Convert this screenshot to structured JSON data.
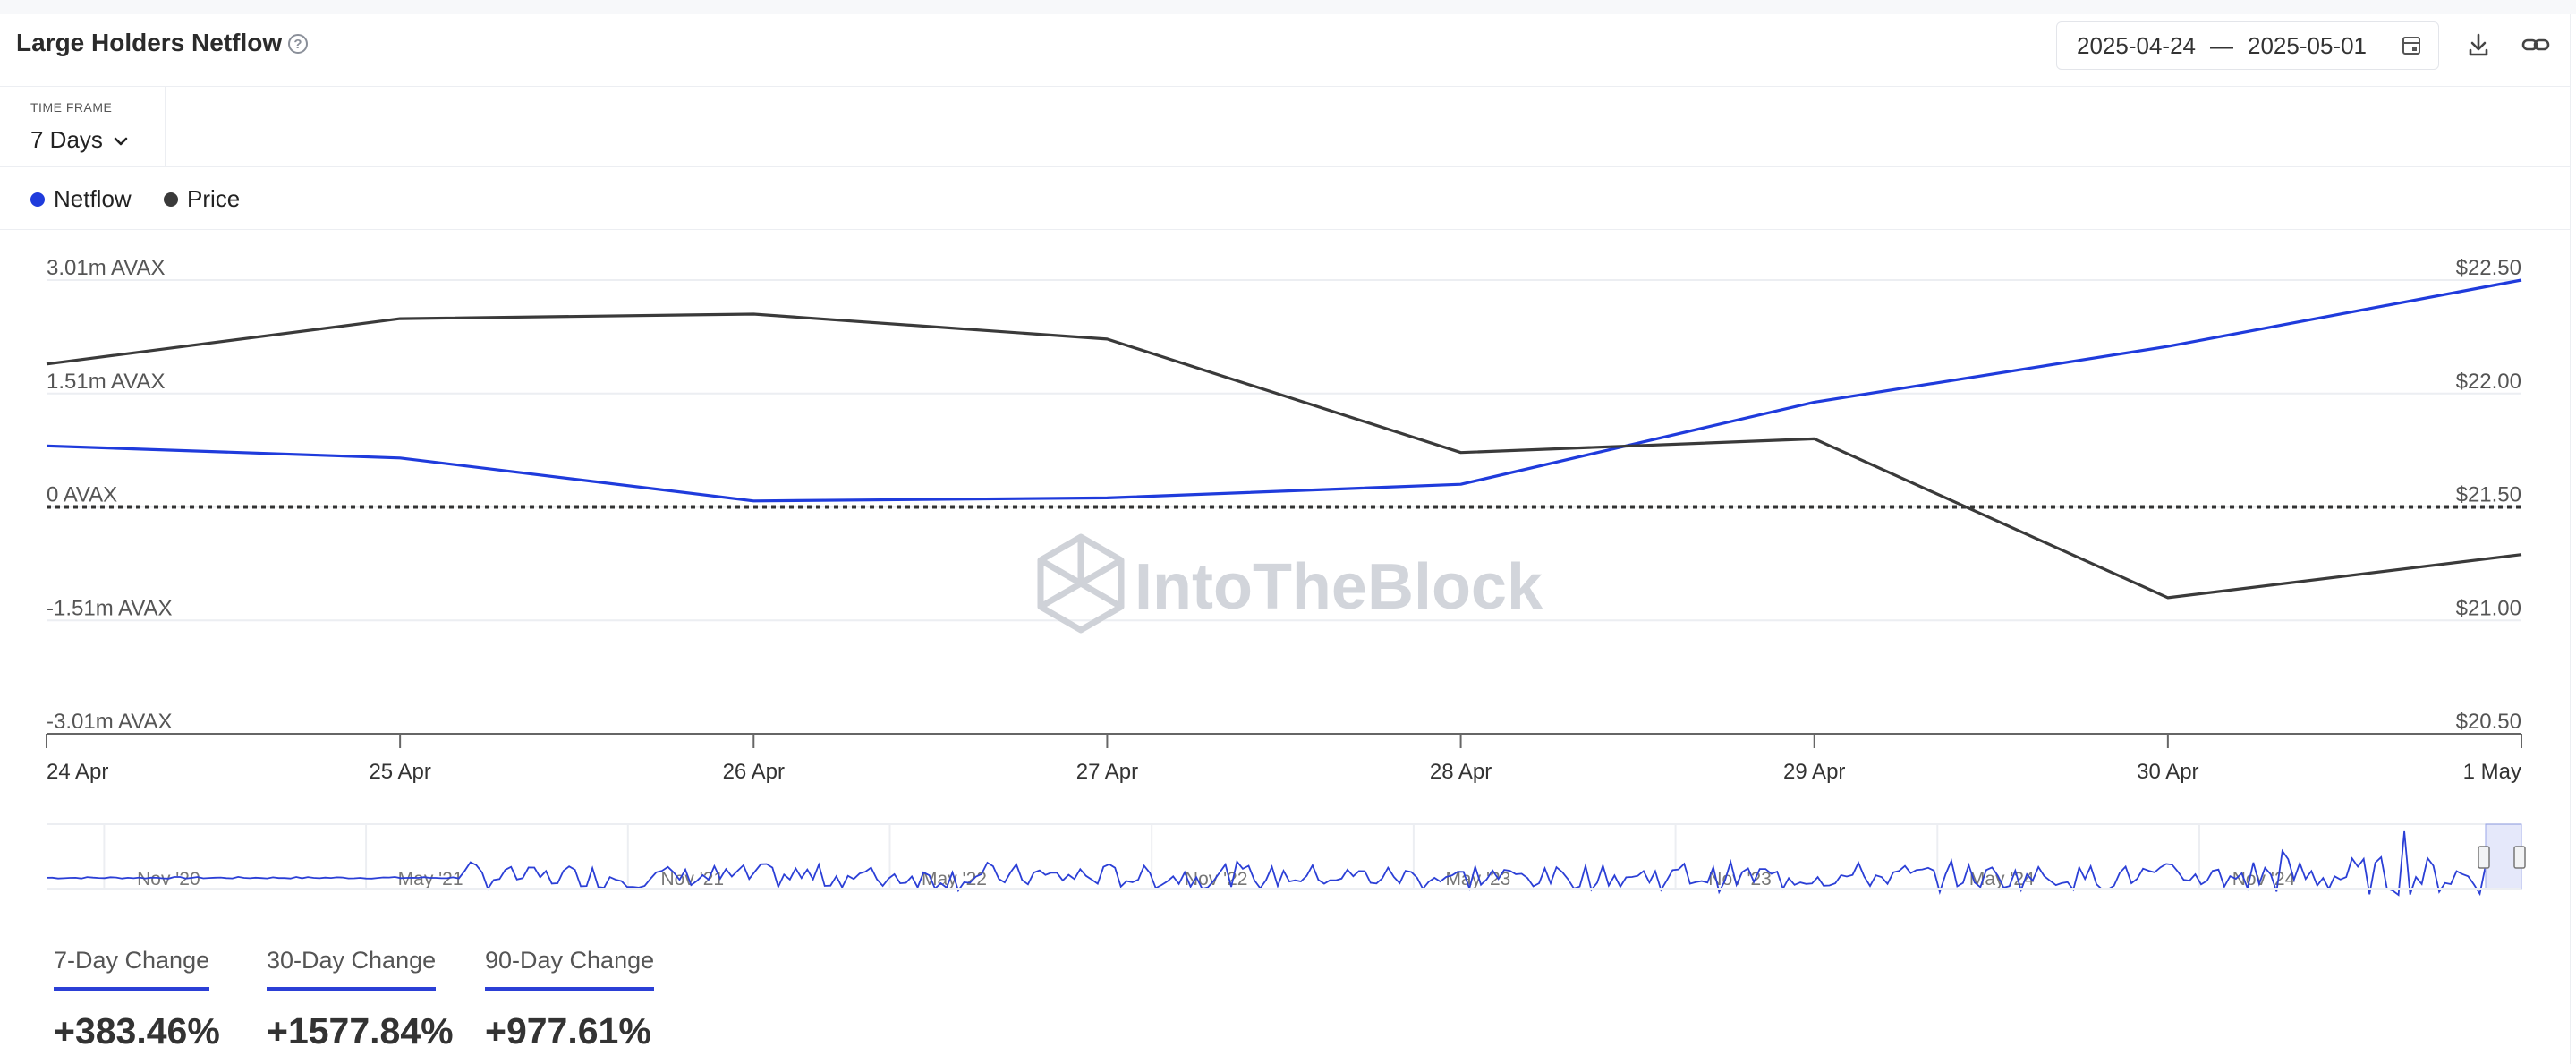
{
  "header": {
    "title": "Large Holders Netflow",
    "date_from": "2025-04-24",
    "date_sep": "—",
    "date_to": "2025-05-01"
  },
  "timeframe": {
    "label": "TIME FRAME",
    "value": "7 Days"
  },
  "legend": [
    {
      "name": "Netflow",
      "color": "#1f3bdc"
    },
    {
      "name": "Price",
      "color": "#3a3a3a"
    }
  ],
  "watermark": "IntoTheBlock",
  "chart_data": {
    "type": "line",
    "x": [
      "24 Apr",
      "25 Apr",
      "26 Apr",
      "27 Apr",
      "28 Apr",
      "29 Apr",
      "30 Apr",
      "1 May"
    ],
    "y_left_ticks": [
      "3.01m AVAX",
      "1.51m AVAX",
      "0 AVAX",
      "-1.51m AVAX",
      "-3.01m AVAX"
    ],
    "y_right_ticks": [
      "$22.50",
      "$22.00",
      "$21.50",
      "$21.00",
      "$20.50"
    ],
    "y_left_range": [
      -3.01,
      3.01
    ],
    "y_left_unit": "m AVAX",
    "y_right_range": [
      20.5,
      22.5
    ],
    "series": [
      {
        "name": "Netflow",
        "axis": "left",
        "color": "#1f3bdc",
        "values": [
          0.81,
          0.65,
          0.08,
          0.12,
          0.3,
          1.39,
          2.13,
          3.01
        ]
      },
      {
        "name": "Price",
        "axis": "right",
        "color": "#3a3a3a",
        "values": [
          22.13,
          22.33,
          22.35,
          22.24,
          21.74,
          21.8,
          21.1,
          21.29
        ]
      }
    ],
    "zero_line": "dotted",
    "navigator": {
      "labels": [
        "Nov '20",
        "May '21",
        "Nov '21",
        "May '22",
        "Nov '22",
        "May '23",
        "Nov '23",
        "May '24",
        "Nov '24"
      ]
    }
  },
  "stats": [
    {
      "label": "7-Day Change",
      "value": "+383.46%"
    },
    {
      "label": "30-Day Change",
      "value": "+1577.84%"
    },
    {
      "label": "90-Day Change",
      "value": "+977.61%"
    }
  ]
}
